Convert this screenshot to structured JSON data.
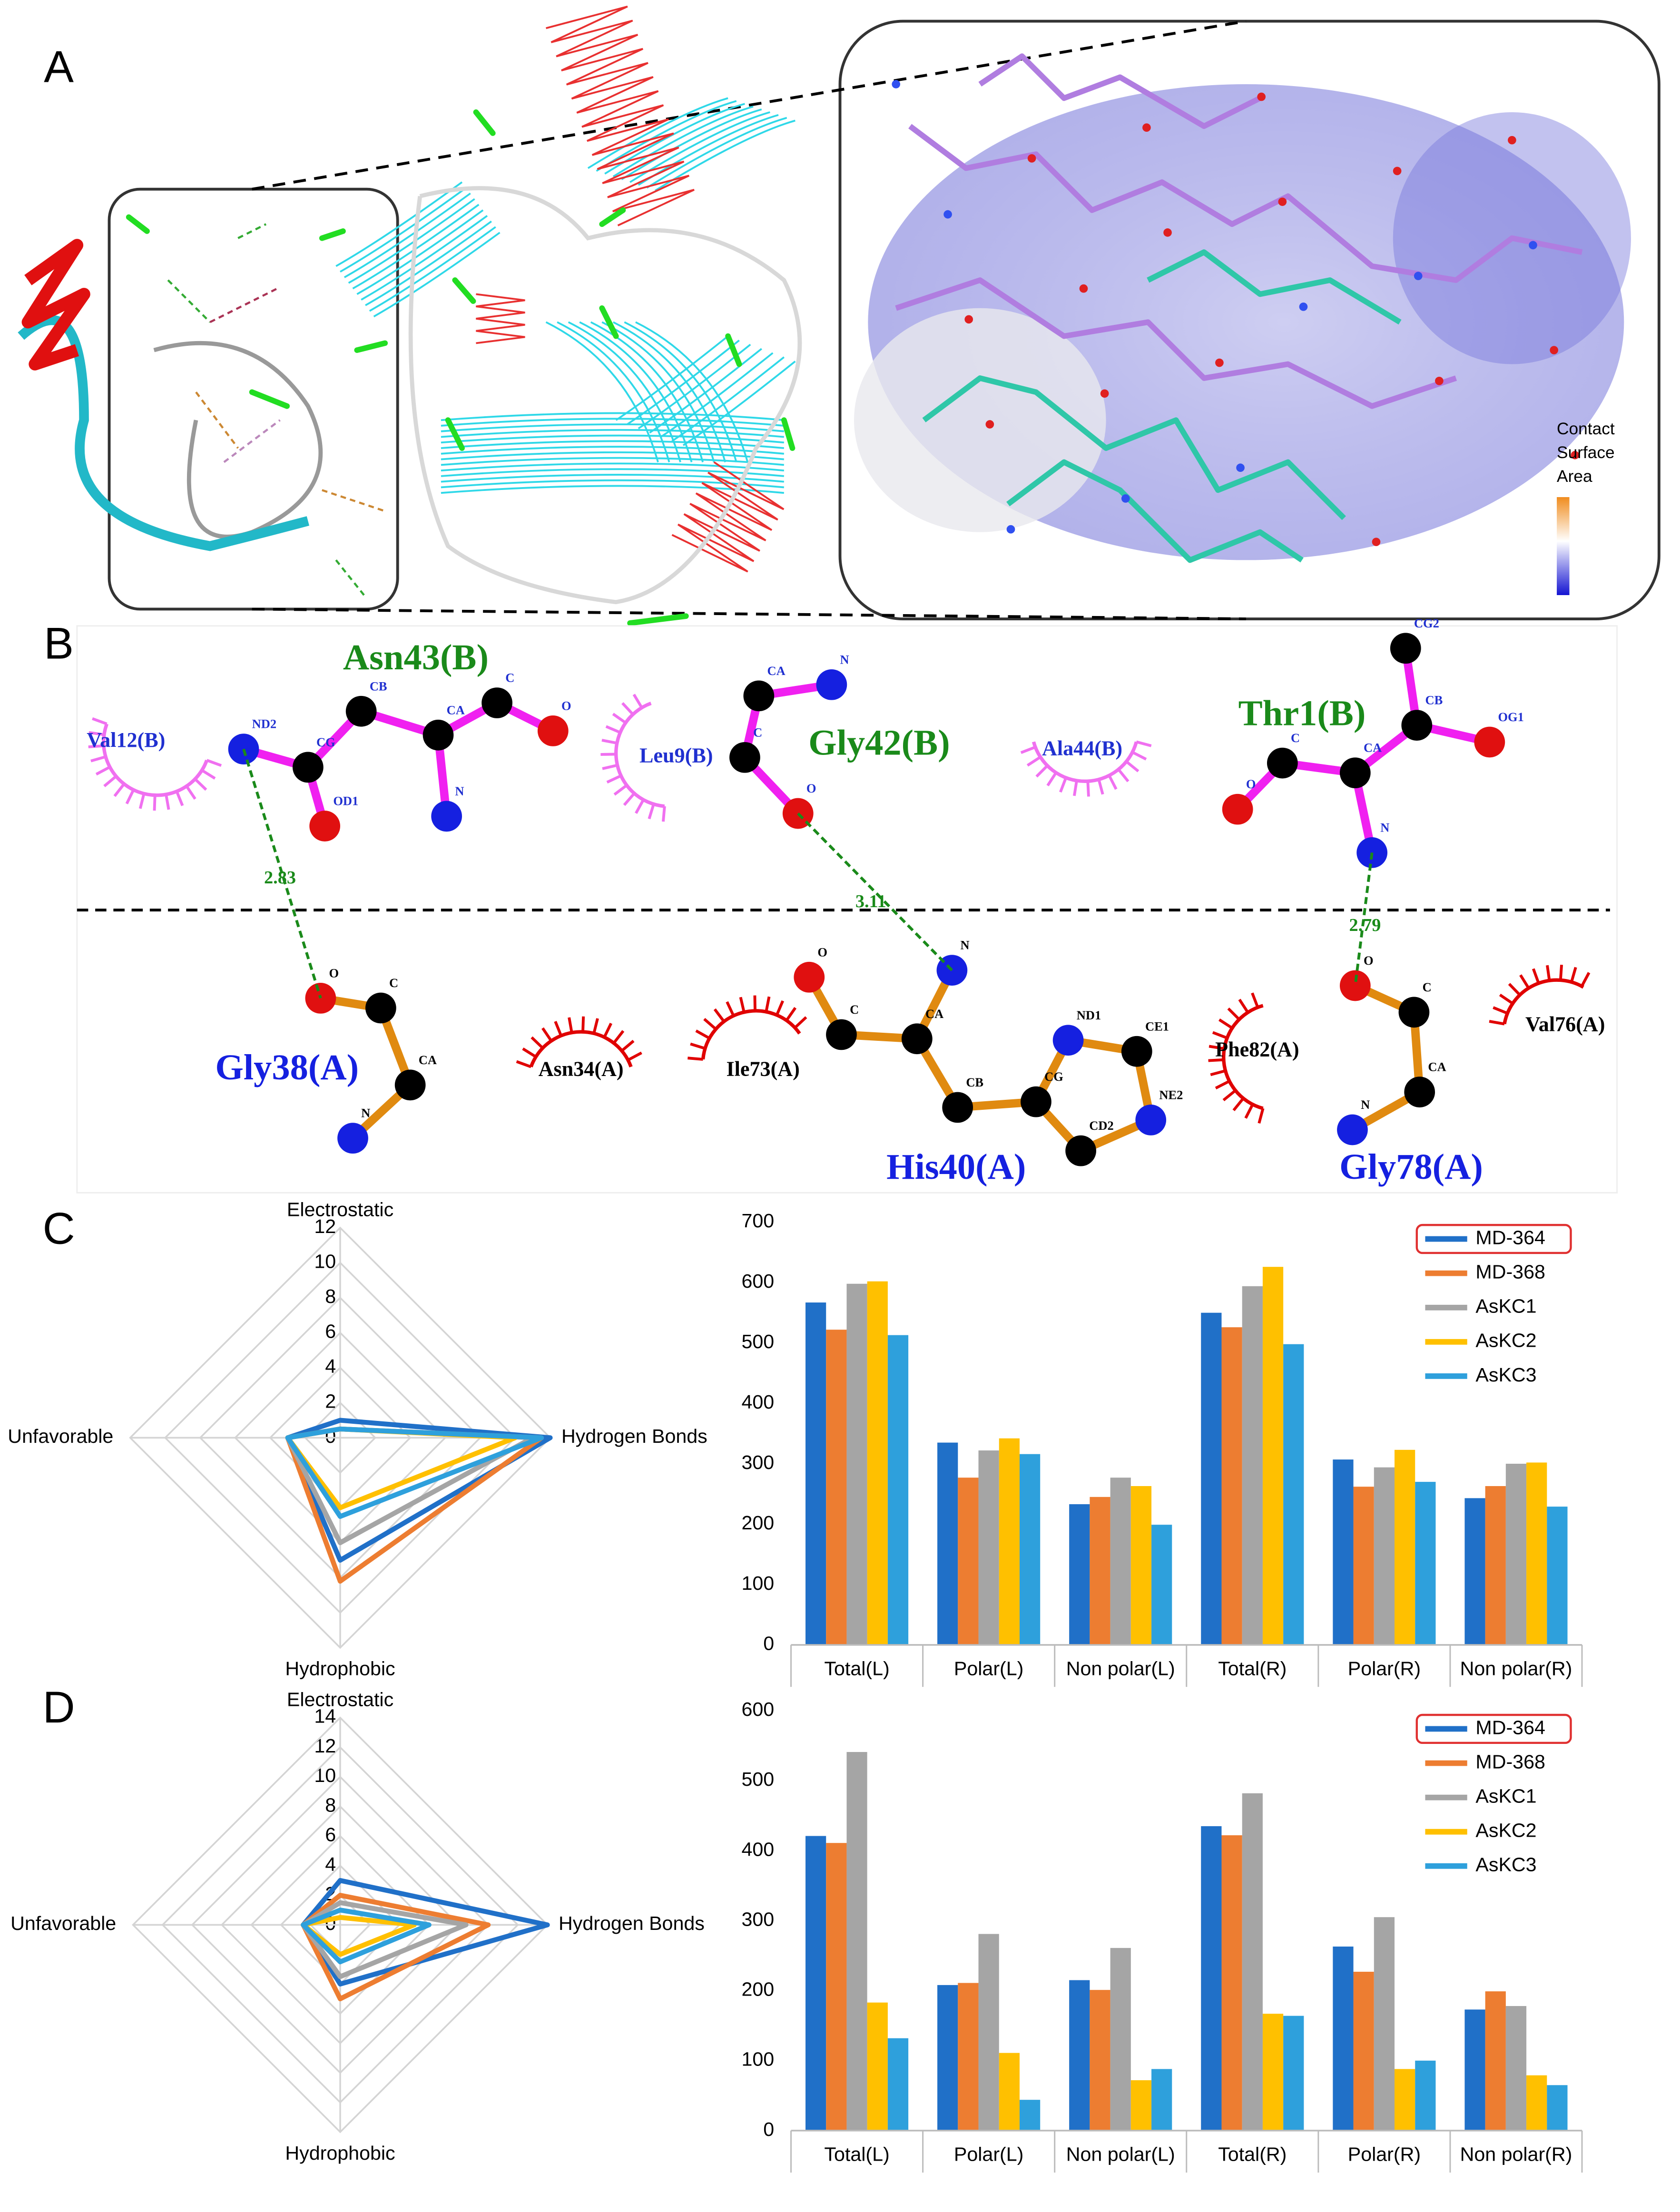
{
  "panel_labels": [
    "A",
    "B",
    "C",
    "D"
  ],
  "panel_a": {
    "legend_title": [
      "Contact",
      "Surface",
      "Area"
    ]
  },
  "panel_b": {
    "ligand_residues": [
      {
        "name": "Asn43(B)",
        "atoms": [
          "ND2",
          "CG",
          "OD1",
          "CB",
          "CA",
          "N",
          "C",
          "O"
        ]
      },
      {
        "name": "Gly42(B)",
        "atoms": [
          "CA",
          "N",
          "C",
          "O"
        ]
      },
      {
        "name": "Thr1(B)",
        "atoms": [
          "CG2",
          "CB",
          "OG1",
          "CA",
          "C",
          "O",
          "N"
        ]
      }
    ],
    "receptor_residues": [
      {
        "name": "Gly38(A)",
        "atoms": [
          "O",
          "C",
          "CA",
          "N"
        ]
      },
      {
        "name": "His40(A)",
        "atoms": [
          "O",
          "C",
          "CA",
          "N",
          "CB",
          "CG",
          "ND1",
          "CE1",
          "NE2",
          "CD2"
        ]
      },
      {
        "name": "Gly78(A)",
        "atoms": [
          "O",
          "C",
          "CA",
          "N"
        ]
      }
    ],
    "ligand_contacts": [
      "Val12(B)",
      "Leu9(B)",
      "Ala44(B)"
    ],
    "receptor_contacts": [
      "Asn34(A)",
      "Ile73(A)",
      "Phe82(A)",
      "Val76(A)"
    ],
    "hbond_distances": [
      2.83,
      3.11,
      2.79
    ]
  },
  "chart_data": [
    {
      "type": "radar",
      "axes": [
        "Electrostatic",
        "Hydrogen Bonds",
        "Hydrophobic",
        "Unfavorable"
      ],
      "rlim": [
        0,
        12
      ],
      "rticks": [
        0,
        2,
        4,
        6,
        8,
        10,
        12
      ],
      "series": [
        {
          "name": "MD-364",
          "color": "#2070c8",
          "values": [
            1,
            12,
            7,
            3
          ]
        },
        {
          "name": "MD-368",
          "color": "#ed7d31",
          "values": [
            0.5,
            11.5,
            8.2,
            3
          ]
        },
        {
          "name": "AsKC1",
          "color": "#a5a5a5",
          "values": [
            0.5,
            11,
            6,
            3
          ]
        },
        {
          "name": "AsKC2",
          "color": "#ffc000",
          "values": [
            0.5,
            10,
            4,
            3
          ]
        },
        {
          "name": "AsKC3",
          "color": "#2ea0dc",
          "values": [
            0.5,
            11.5,
            4.5,
            3
          ]
        }
      ]
    },
    {
      "type": "bar",
      "categories": [
        "Total(L)",
        "Polar(L)",
        "Non polar(L)",
        "Total(R)",
        "Polar(R)",
        "Non polar(R)"
      ],
      "ylim": [
        0,
        700
      ],
      "yticks": [
        0,
        100,
        200,
        300,
        400,
        500,
        600,
        700
      ],
      "legend": "upper right",
      "series": [
        {
          "name": "MD-364",
          "color": "#2070c8",
          "values": [
            567,
            335,
            233,
            550,
            307,
            243
          ]
        },
        {
          "name": "MD-368",
          "color": "#ed7d31",
          "values": [
            522,
            277,
            245,
            526,
            262,
            263
          ]
        },
        {
          "name": "AsKC1",
          "color": "#a5a5a5",
          "values": [
            598,
            322,
            277,
            594,
            294,
            300
          ]
        },
        {
          "name": "AsKC2",
          "color": "#ffc000",
          "values": [
            602,
            342,
            263,
            626,
            323,
            302
          ]
        },
        {
          "name": "AsKC3",
          "color": "#2ea0dc",
          "values": [
            513,
            316,
            199,
            498,
            270,
            229
          ]
        }
      ]
    },
    {
      "type": "radar",
      "axes": [
        "Electrostatic",
        "Hydrogen Bonds",
        "Hydrophobic",
        "Unfavorable"
      ],
      "rlim": [
        0,
        14
      ],
      "rticks": [
        0,
        2,
        4,
        6,
        8,
        10,
        12,
        14
      ],
      "series": [
        {
          "name": "MD-364",
          "color": "#2070c8",
          "values": [
            3,
            14,
            4,
            2.5
          ]
        },
        {
          "name": "MD-368",
          "color": "#ed7d31",
          "values": [
            2,
            10,
            5,
            2.5
          ]
        },
        {
          "name": "AsKC1",
          "color": "#a5a5a5",
          "values": [
            1.5,
            8.5,
            3.5,
            2.5
          ]
        },
        {
          "name": "AsKC2",
          "color": "#ffc000",
          "values": [
            0.5,
            5,
            2,
            2.5
          ]
        },
        {
          "name": "AsKC3",
          "color": "#2ea0dc",
          "values": [
            1,
            6,
            2.5,
            2.5
          ]
        }
      ]
    },
    {
      "type": "bar",
      "categories": [
        "Total(L)",
        "Polar(L)",
        "Non polar(L)",
        "Total(R)",
        "Polar(R)",
        "Non polar(R)"
      ],
      "ylim": [
        0,
        600
      ],
      "yticks": [
        0,
        100,
        200,
        300,
        400,
        500,
        600
      ],
      "legend": "upper right",
      "series": [
        {
          "name": "MD-364",
          "color": "#2070c8",
          "values": [
            421,
            208,
            215,
            435,
            263,
            173
          ]
        },
        {
          "name": "MD-368",
          "color": "#ed7d31",
          "values": [
            411,
            211,
            201,
            422,
            227,
            199
          ]
        },
        {
          "name": "AsKC1",
          "color": "#a5a5a5",
          "values": [
            541,
            281,
            261,
            482,
            305,
            178
          ]
        },
        {
          "name": "AsKC2",
          "color": "#ffc000",
          "values": [
            183,
            111,
            72,
            167,
            88,
            79
          ]
        },
        {
          "name": "AsKC3",
          "color": "#2ea0dc",
          "values": [
            132,
            44,
            88,
            164,
            100,
            65
          ]
        }
      ]
    }
  ]
}
